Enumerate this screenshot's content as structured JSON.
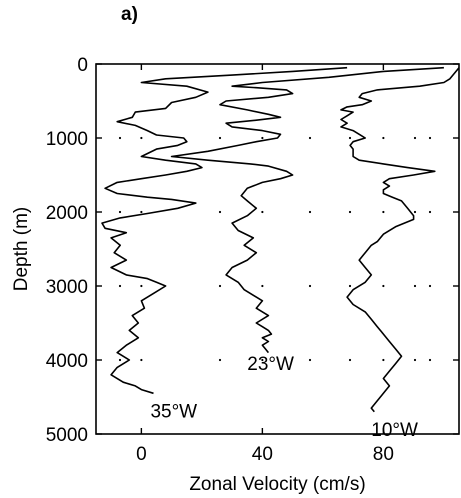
{
  "chart_data": {
    "type": "line",
    "panel_label": "a)",
    "xlabel": "Zonal Velocity (cm/s)",
    "ylabel": "Depth (m)",
    "xlim": [
      -15,
      105
    ],
    "ylim": [
      5000,
      0
    ],
    "x_ticks": [
      0,
      40,
      80
    ],
    "x_tick_labels": [
      "0",
      "40",
      "80"
    ],
    "y_ticks": [
      0,
      1000,
      2000,
      3000,
      4000,
      5000
    ],
    "y_tick_labels": [
      "0",
      "1000",
      "2000",
      "3000",
      "4000",
      "5000"
    ],
    "grid": "dotted points at tick intersections",
    "series": [
      {
        "name": "35°W",
        "annotation": "35°W",
        "points": [
          [
            68,
            50
          ],
          [
            50,
            100
          ],
          [
            30,
            150
          ],
          [
            8,
            200
          ],
          [
            0,
            250
          ],
          [
            15,
            300
          ],
          [
            22,
            380
          ],
          [
            18,
            450
          ],
          [
            10,
            520
          ],
          [
            8,
            600
          ],
          [
            -2,
            650
          ],
          [
            -3,
            720
          ],
          [
            -8,
            780
          ],
          [
            -2,
            830
          ],
          [
            2,
            900
          ],
          [
            5,
            960
          ],
          [
            14,
            1000
          ],
          [
            15,
            1050
          ],
          [
            12,
            1100
          ],
          [
            5,
            1150
          ],
          [
            0,
            1250
          ],
          [
            8,
            1300
          ],
          [
            18,
            1350
          ],
          [
            20,
            1400
          ],
          [
            15,
            1450
          ],
          [
            8,
            1500
          ],
          [
            0,
            1550
          ],
          [
            -8,
            1600
          ],
          [
            -12,
            1680
          ],
          [
            -8,
            1750
          ],
          [
            2,
            1800
          ],
          [
            10,
            1830
          ],
          [
            18,
            1880
          ],
          [
            12,
            1950
          ],
          [
            2,
            2020
          ],
          [
            -7,
            2080
          ],
          [
            -13,
            2150
          ],
          [
            -12,
            2220
          ],
          [
            -5,
            2280
          ],
          [
            -10,
            2350
          ],
          [
            -7,
            2450
          ],
          [
            -9,
            2550
          ],
          [
            -5,
            2650
          ],
          [
            -10,
            2750
          ],
          [
            -5,
            2850
          ],
          [
            2,
            2900
          ],
          [
            5,
            2950
          ],
          [
            8,
            3000
          ],
          [
            4,
            3100
          ],
          [
            0,
            3200
          ],
          [
            1,
            3300
          ],
          [
            -3,
            3400
          ],
          [
            -1,
            3500
          ],
          [
            -4,
            3600
          ],
          [
            -1,
            3700
          ],
          [
            -5,
            3800
          ],
          [
            -8,
            3900
          ],
          [
            -4,
            4000
          ],
          [
            -8,
            4100
          ],
          [
            -10,
            4200
          ],
          [
            -6,
            4300
          ],
          [
            -2,
            4350
          ],
          [
            0,
            4400
          ],
          [
            4,
            4450
          ]
        ]
      },
      {
        "name": "23°W",
        "annotation": "23°W",
        "points": [
          [
            100,
            50
          ],
          [
            80,
            100
          ],
          [
            62,
            180
          ],
          [
            40,
            250
          ],
          [
            30,
            300
          ],
          [
            38,
            320
          ],
          [
            48,
            350
          ],
          [
            50,
            400
          ],
          [
            42,
            450
          ],
          [
            28,
            500
          ],
          [
            26,
            550
          ],
          [
            35,
            620
          ],
          [
            42,
            680
          ],
          [
            46,
            720
          ],
          [
            38,
            760
          ],
          [
            28,
            800
          ],
          [
            30,
            850
          ],
          [
            40,
            900
          ],
          [
            46,
            950
          ],
          [
            45,
            1000
          ],
          [
            38,
            1050
          ],
          [
            32,
            1100
          ],
          [
            22,
            1180
          ],
          [
            10,
            1250
          ],
          [
            22,
            1300
          ],
          [
            36,
            1350
          ],
          [
            42,
            1380
          ],
          [
            48,
            1450
          ],
          [
            50,
            1500
          ],
          [
            46,
            1550
          ],
          [
            40,
            1600
          ],
          [
            35,
            1680
          ],
          [
            33,
            1780
          ],
          [
            35,
            1850
          ],
          [
            38,
            1950
          ],
          [
            35,
            2050
          ],
          [
            30,
            2150
          ],
          [
            32,
            2250
          ],
          [
            37,
            2350
          ],
          [
            34,
            2450
          ],
          [
            38,
            2550
          ],
          [
            35,
            2650
          ],
          [
            30,
            2750
          ],
          [
            28,
            2850
          ],
          [
            32,
            2950
          ],
          [
            34,
            3050
          ],
          [
            38,
            3150
          ],
          [
            40,
            3200
          ],
          [
            38,
            3300
          ],
          [
            42,
            3400
          ],
          [
            38,
            3500
          ],
          [
            40,
            3550
          ],
          [
            42,
            3600
          ],
          [
            43,
            3650
          ],
          [
            40,
            3700
          ],
          [
            42,
            3750
          ],
          [
            40,
            3800
          ],
          [
            41,
            3850
          ],
          [
            42,
            3900
          ]
        ]
      },
      {
        "name": "10°W",
        "annotation": "10°W",
        "points": [
          [
            105,
            50
          ],
          [
            104,
            100
          ],
          [
            103,
            150
          ],
          [
            102,
            200
          ],
          [
            100,
            250
          ],
          [
            92,
            300
          ],
          [
            78,
            350
          ],
          [
            73,
            400
          ],
          [
            72,
            450
          ],
          [
            76,
            500
          ],
          [
            73,
            550
          ],
          [
            68,
            580
          ],
          [
            66,
            620
          ],
          [
            70,
            650
          ],
          [
            68,
            700
          ],
          [
            66,
            750
          ],
          [
            68,
            800
          ],
          [
            66,
            850
          ],
          [
            70,
            900
          ],
          [
            72,
            950
          ],
          [
            74,
            1000
          ],
          [
            70,
            1050
          ],
          [
            69,
            1100
          ],
          [
            70,
            1150
          ],
          [
            70,
            1250
          ],
          [
            72,
            1300
          ],
          [
            80,
            1350
          ],
          [
            88,
            1400
          ],
          [
            97,
            1450
          ],
          [
            90,
            1500
          ],
          [
            82,
            1550
          ],
          [
            80,
            1600
          ],
          [
            82,
            1650
          ],
          [
            80,
            1700
          ],
          [
            80,
            1750
          ],
          [
            83,
            1800
          ],
          [
            86,
            1850
          ],
          [
            88,
            1950
          ],
          [
            90,
            2050
          ],
          [
            90,
            2100
          ],
          [
            84,
            2200
          ],
          [
            80,
            2300
          ],
          [
            78,
            2400
          ],
          [
            76,
            2450
          ],
          [
            74,
            2550
          ],
          [
            72,
            2650
          ],
          [
            74,
            2750
          ],
          [
            76,
            2850
          ],
          [
            74,
            2950
          ],
          [
            70,
            3050
          ],
          [
            68,
            3150
          ],
          [
            70,
            3250
          ],
          [
            74,
            3350
          ],
          [
            76,
            3450
          ],
          [
            78,
            3550
          ],
          [
            80,
            3650
          ],
          [
            82,
            3750
          ],
          [
            84,
            3850
          ],
          [
            86,
            3950
          ],
          [
            84,
            4050
          ],
          [
            82,
            4150
          ],
          [
            80,
            4250
          ],
          [
            82,
            4350
          ],
          [
            80,
            4450
          ],
          [
            78,
            4550
          ],
          [
            76,
            4650
          ],
          [
            77,
            4700
          ]
        ]
      }
    ],
    "annotations": [
      {
        "text": "35°W",
        "x": 3,
        "y": 4680
      },
      {
        "text": "23°W",
        "x": 35,
        "y": 4040
      },
      {
        "text": "10°W",
        "x": 76,
        "y": 4930
      }
    ]
  }
}
